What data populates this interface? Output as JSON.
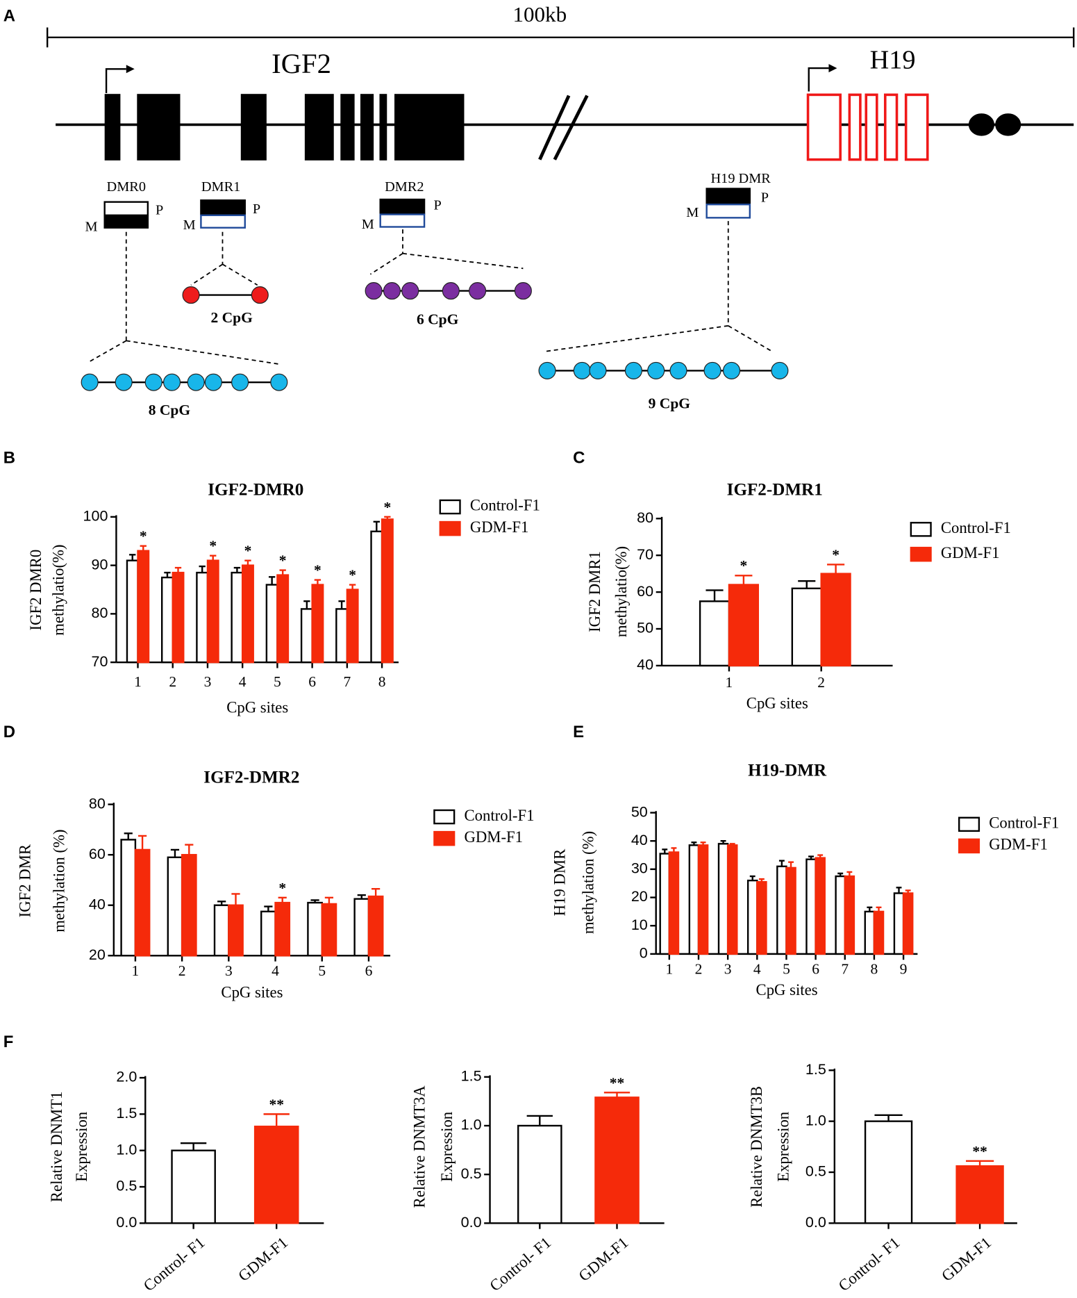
{
  "panel_labels": [
    "A",
    "B",
    "C",
    "D",
    "E",
    "F"
  ],
  "diagram": {
    "scale": "100kb",
    "genes": [
      "IGF2",
      "H19"
    ],
    "dmrs": [
      {
        "name": "DMR0",
        "paternal": "P",
        "maternal": "M",
        "cpg": "8 CpG"
      },
      {
        "name": "DMR1",
        "paternal": "P",
        "maternal": "M",
        "cpg": "2 CpG"
      },
      {
        "name": "DMR2",
        "paternal": "P",
        "maternal": "M",
        "cpg": "6 CpG"
      },
      {
        "name": "H19 DMR",
        "paternal": "P",
        "maternal": "M",
        "cpg": "9 CpG"
      }
    ]
  },
  "chart_data": [
    {
      "type": "bar",
      "title": "IGF2-DMR0",
      "ylabel": [
        "IGF2 DMR0",
        "methylatio(%)"
      ],
      "xlabel": "CpG sites",
      "categories": [
        "1",
        "2",
        "3",
        "4",
        "5",
        "6",
        "7",
        "8"
      ],
      "ylim": [
        70,
        100
      ],
      "yticks": [
        70,
        80,
        90,
        100
      ],
      "series": [
        {
          "name": "Control-F1",
          "color": "#ffffff",
          "edgecolor": "#000000",
          "values": [
            91,
            87.5,
            88.5,
            88.5,
            86,
            81,
            81,
            97
          ],
          "errors": [
            1.2,
            1,
            1.3,
            1,
            1.6,
            1.6,
            1.6,
            2
          ]
        },
        {
          "name": "GDM-F1",
          "color": "#f52a0a",
          "edgecolor": "#f52a0a",
          "values": [
            93,
            88.5,
            91,
            90,
            88,
            86,
            85,
            99.5
          ],
          "errors": [
            1,
            1,
            1,
            1,
            1,
            1,
            1,
            0.5
          ],
          "significance": [
            "*",
            null,
            "*",
            "*",
            "*",
            "*",
            "*",
            "*"
          ]
        }
      ]
    },
    {
      "type": "bar",
      "title": "IGF2-DMR1",
      "ylabel": [
        "IGF2 DMR1",
        "methylatio(%)"
      ],
      "xlabel": "CpG sites",
      "categories": [
        "1",
        "2"
      ],
      "ylim": [
        40,
        80
      ],
      "yticks": [
        40,
        50,
        60,
        70,
        80
      ],
      "series": [
        {
          "name": "Control-F1",
          "color": "#ffffff",
          "edgecolor": "#000000",
          "values": [
            57.5,
            61
          ],
          "errors": [
            3,
            2
          ]
        },
        {
          "name": "GDM-F1",
          "color": "#f52a0a",
          "edgecolor": "#f52a0a",
          "values": [
            62,
            65
          ],
          "errors": [
            2.5,
            2.5
          ],
          "significance": [
            "*",
            "*"
          ]
        }
      ]
    },
    {
      "type": "bar",
      "title": "IGF2-DMR2",
      "ylabel": [
        "IGF2 DMR",
        "methylation  (%)"
      ],
      "xlabel": "CpG sites",
      "categories": [
        "1",
        "2",
        "3",
        "4",
        "5",
        "6"
      ],
      "ylim": [
        20,
        80
      ],
      "yticks": [
        20,
        40,
        60,
        80
      ],
      "series": [
        {
          "name": "Control-F1",
          "color": "#ffffff",
          "edgecolor": "#000000",
          "values": [
            66,
            59,
            40,
            37.5,
            41,
            42.5
          ],
          "errors": [
            2.5,
            3,
            1.5,
            2,
            1,
            1.5
          ]
        },
        {
          "name": "GDM-F1",
          "color": "#f52a0a",
          "edgecolor": "#f52a0a",
          "values": [
            62,
            60,
            40,
            41,
            40.5,
            43.5
          ],
          "errors": [
            5.5,
            4,
            4.5,
            2,
            2.5,
            3
          ],
          "significance": [
            null,
            null,
            null,
            "*",
            null,
            null
          ]
        }
      ]
    },
    {
      "type": "bar",
      "title": "H19-DMR",
      "ylabel": [
        "H19 DMR",
        "methylation  (%)"
      ],
      "xlabel": "CpG sites",
      "categories": [
        "1",
        "2",
        "3",
        "4",
        "5",
        "6",
        "7",
        "8",
        "9"
      ],
      "ylim": [
        0,
        50
      ],
      "yticks": [
        0,
        10,
        20,
        30,
        40,
        50
      ],
      "series": [
        {
          "name": "Control-F1",
          "color": "#ffffff",
          "edgecolor": "#000000",
          "values": [
            35.5,
            38.5,
            39,
            26,
            31,
            33.5,
            27.5,
            15,
            21.5
          ],
          "errors": [
            1.5,
            1,
            1,
            1.5,
            2,
            1,
            1,
            1.5,
            2
          ]
        },
        {
          "name": "GDM-F1",
          "color": "#f52a0a",
          "edgecolor": "#f52a0a",
          "values": [
            36,
            38.5,
            38.5,
            25.5,
            30.5,
            34,
            27.5,
            15,
            21.5
          ],
          "errors": [
            1.5,
            1,
            0.5,
            1,
            2,
            1,
            1.5,
            1.5,
            1
          ]
        }
      ]
    },
    {
      "type": "bar",
      "ylabel": [
        "Relative DNMT1",
        "Expression"
      ],
      "categories": [
        "Control- F1",
        "GDM-F1"
      ],
      "ylim": [
        0,
        2
      ],
      "yticks": [
        {
          "value": 0,
          "label": "0.0"
        },
        {
          "value": 0.5,
          "label": "0.5"
        },
        {
          "value": 1,
          "label": "1.0"
        },
        {
          "value": 1.5,
          "label": "1.5"
        },
        {
          "value": 2,
          "label": "2.0"
        }
      ],
      "values": [
        1,
        1.33
      ],
      "errors": [
        0.1,
        0.17
      ],
      "colors": [
        "#ffffff",
        "#f52a0a"
      ],
      "edgecolors": [
        "#000000",
        "#f52a0a"
      ],
      "significance": [
        null,
        "**"
      ]
    },
    {
      "type": "bar",
      "ylabel": [
        "Relative DNMT3A",
        "Expression"
      ],
      "categories": [
        "Control- F1",
        "GDM-F1"
      ],
      "ylim": [
        0,
        1.5
      ],
      "yticks": [
        {
          "value": 0,
          "label": "0.0"
        },
        {
          "value": 0.5,
          "label": "0.5"
        },
        {
          "value": 1,
          "label": "1.0"
        },
        {
          "value": 1.5,
          "label": "1.5"
        }
      ],
      "values": [
        1,
        1.29
      ],
      "errors": [
        0.1,
        0.05
      ],
      "colors": [
        "#ffffff",
        "#f52a0a"
      ],
      "edgecolors": [
        "#000000",
        "#f52a0a"
      ],
      "significance": [
        null,
        "**"
      ]
    },
    {
      "type": "bar",
      "ylabel": [
        "Relative DNMT3B",
        "Expression"
      ],
      "categories": [
        "Control- F1",
        "GDM-F1"
      ],
      "ylim": [
        0,
        1.5
      ],
      "yticks": [
        {
          "value": 0,
          "label": "0.0"
        },
        {
          "value": 0.5,
          "label": "0.5"
        },
        {
          "value": 1,
          "label": "1.0"
        },
        {
          "value": 1.5,
          "label": "1.5"
        }
      ],
      "values": [
        1,
        0.56
      ],
      "errors": [
        0.06,
        0.05
      ],
      "colors": [
        "#ffffff",
        "#f52a0a"
      ],
      "edgecolors": [
        "#000000",
        "#f52a0a"
      ],
      "significance": [
        null,
        "**"
      ]
    }
  ]
}
